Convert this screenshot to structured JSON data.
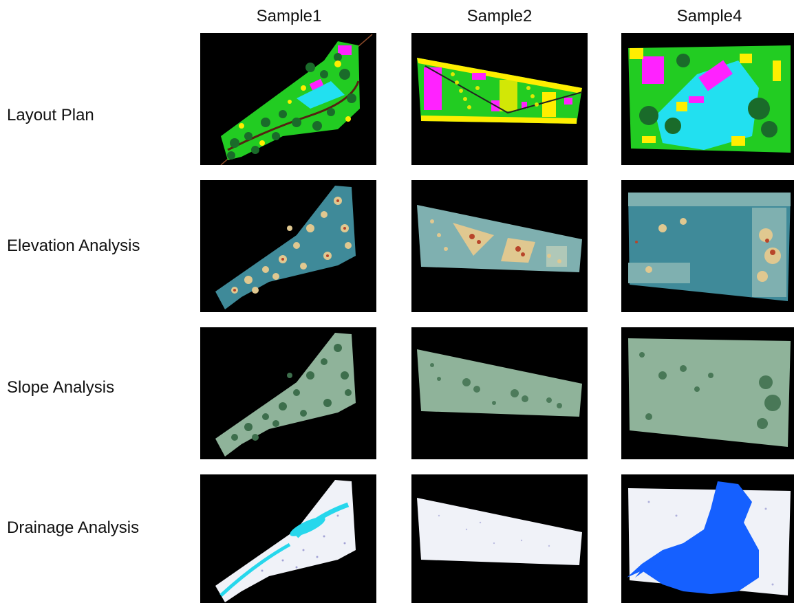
{
  "columns": [
    "Sample1",
    "Sample2",
    "Sample4"
  ],
  "rows": [
    "Layout Plan",
    "Elevation Analysis",
    "Slope Analysis",
    "Drainage Analysis"
  ],
  "colors": {
    "tile_bg": "#000000",
    "layout_green": "#22cc22",
    "layout_yellow": "#ffee00",
    "layout_magenta": "#ff22ff",
    "layout_cyan": "#22e0f0",
    "layout_dark_tree": "#1a6b2a",
    "elevation_teal": "#3f8a99",
    "elevation_high": "#b8452a",
    "elevation_mid": "#e0c890",
    "slope_green": "#8fb39a",
    "slope_dark": "#3d6e4c",
    "drainage_white": "#f0f2f8",
    "drainage_dots": "#7070c0",
    "drainage_cyan": "#27d7ec",
    "drainage_blue": "#1560ff"
  }
}
